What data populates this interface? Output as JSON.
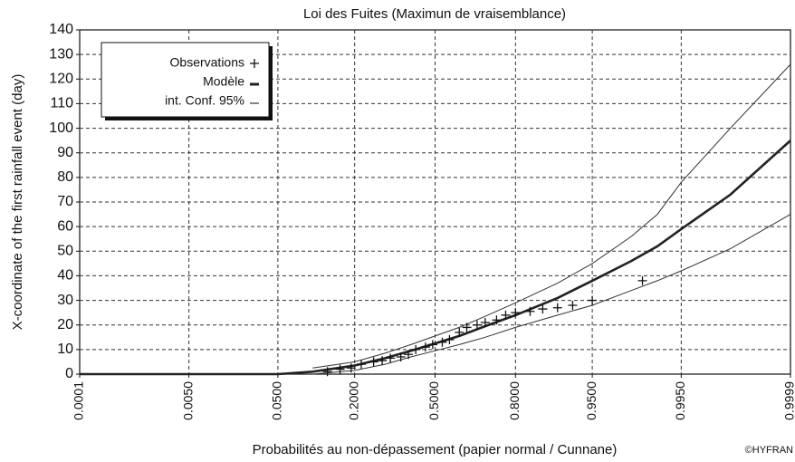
{
  "chart_data": {
    "type": "probability-plot",
    "title": "Loi des Fuites (Maximun de vraisemblance)",
    "x_label": "Probabilités au non-dépassement (papier normal / Cunnane)",
    "y_label": "X-coordinate of the first rainfall event (day)",
    "credit": "©HYFRAN",
    "x_scale": "normal",
    "xlim": [
      0.0001,
      0.9999
    ],
    "xticks": [
      0.0001,
      {
        "value": 0.005,
        "label": "0.0050"
      },
      {
        "value": 0.05,
        "label": "0.0500"
      },
      {
        "value": 0.2,
        "label": "0.2000"
      },
      {
        "value": 0.5,
        "label": "0.5000"
      },
      {
        "value": 0.8,
        "label": "0.8000"
      },
      {
        "value": 0.95,
        "label": "0.9500"
      },
      {
        "value": 0.995,
        "label": "0.9950"
      },
      0.9999
    ],
    "ylim": [
      0,
      140
    ],
    "yticks": [
      0,
      10,
      20,
      30,
      40,
      50,
      60,
      70,
      80,
      90,
      100,
      110,
      120,
      130,
      140
    ],
    "grid": true,
    "legend": "upper left",
    "x": [
      0.0001,
      0.001,
      0.01,
      0.05,
      0.1,
      0.2,
      0.3,
      0.4,
      0.5,
      0.6,
      0.7,
      0.8,
      0.9,
      0.95,
      0.98,
      0.99,
      0.995,
      0.999,
      0.9999
    ],
    "series": [
      {
        "name": "Observations",
        "color": "#111111",
        "x": [
          0.13,
          0.16,
          0.19,
          0.22,
          0.26,
          0.29,
          0.32,
          0.36,
          0.39,
          0.42,
          0.46,
          0.49,
          0.53,
          0.56,
          0.6,
          0.63,
          0.67,
          0.7,
          0.74,
          0.77,
          0.8,
          0.84,
          0.87,
          0.9,
          0.925,
          0.95,
          0.985
        ],
        "values": [
          1,
          2,
          2.5,
          4,
          5,
          5.5,
          6.5,
          7,
          8,
          10,
          11,
          12,
          13,
          14,
          17,
          19,
          20,
          21,
          22,
          24,
          25,
          25.5,
          26.5,
          27,
          28,
          30,
          38
        ]
      },
      {
        "name": "Modèle",
        "color": "#222222",
        "values": [
          0,
          0,
          0,
          0,
          1,
          3.5,
          6.5,
          9.5,
          12.5,
          15.5,
          19.5,
          24,
          31,
          38,
          46,
          52,
          59,
          73,
          95
        ]
      },
      {
        "name": "int. Conf. 95%",
        "color": "#333333",
        "upper": [
          null,
          null,
          null,
          null,
          2.5,
          5,
          8.5,
          12,
          15.5,
          19,
          23.5,
          29,
          37,
          45,
          56,
          65,
          78,
          100,
          126
        ],
        "lower": [
          null,
          null,
          null,
          null,
          0,
          1.5,
          4,
          7,
          9.5,
          12,
          15,
          19,
          24,
          28,
          34,
          38,
          42,
          51,
          65
        ]
      }
    ]
  }
}
